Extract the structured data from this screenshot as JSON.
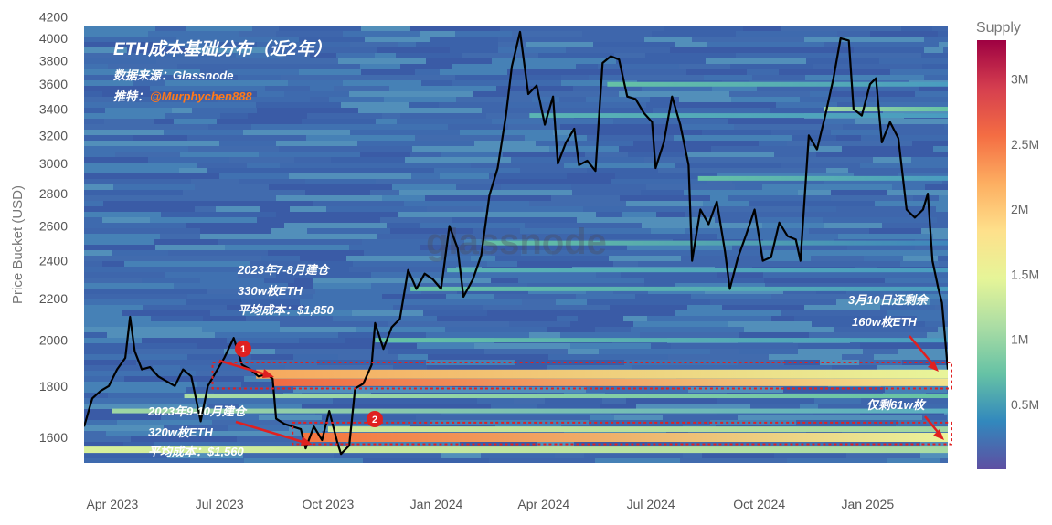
{
  "chart_data": {
    "type": "heatmap",
    "title": "ETH成本基础分布（近2年）",
    "source_line": "数据来源：Glassnode",
    "twitter_prefix": "推特：",
    "twitter_handle": "@Murphychen888",
    "watermark": "glassnode",
    "ylabel": "Price Bucket (USD)",
    "ylim": [
      1520,
      4200
    ],
    "y_ticks": [
      1600,
      1800,
      2000,
      2200,
      2400,
      2600,
      2800,
      3000,
      3200,
      3400,
      3600,
      3800,
      4000,
      4200
    ],
    "x_range": [
      "2023-03-08",
      "2025-03-10"
    ],
    "x_ticks": [
      {
        "date": "2023-04-01",
        "label": "Apr 2023"
      },
      {
        "date": "2023-07-01",
        "label": "Jul 2023"
      },
      {
        "date": "2023-10-01",
        "label": "Oct 2023"
      },
      {
        "date": "2024-01-01",
        "label": "Jan 2024"
      },
      {
        "date": "2024-04-01",
        "label": "Apr 2024"
      },
      {
        "date": "2024-07-01",
        "label": "Jul 2024"
      },
      {
        "date": "2024-10-01",
        "label": "Oct 2024"
      },
      {
        "date": "2025-01-01",
        "label": "Jan 2025"
      }
    ],
    "colorbar": {
      "title": "Supply",
      "min": 0,
      "max": 3300000,
      "ticks": [
        {
          "value": 500000,
          "label": "0.5M"
        },
        {
          "value": 1000000,
          "label": "1M"
        },
        {
          "value": 1500000,
          "label": "1.5M"
        },
        {
          "value": 2000000,
          "label": "2M"
        },
        {
          "value": 2500000,
          "label": "2.5M"
        },
        {
          "value": 3000000,
          "label": "3M"
        }
      ],
      "colors": [
        "#5e4fa2",
        "#3288bd",
        "#66c2a5",
        "#abdda4",
        "#e6f598",
        "#fee08b",
        "#fdae61",
        "#f46d43",
        "#d53e4f",
        "#9e0142"
      ]
    },
    "price_series": {
      "name": "ETH price",
      "points": [
        [
          "2023-03-08",
          1640
        ],
        [
          "2023-03-15",
          1750
        ],
        [
          "2023-03-22",
          1780
        ],
        [
          "2023-03-29",
          1800
        ],
        [
          "2023-04-05",
          1870
        ],
        [
          "2023-04-12",
          1920
        ],
        [
          "2023-04-16",
          2110
        ],
        [
          "2023-04-20",
          1950
        ],
        [
          "2023-04-26",
          1870
        ],
        [
          "2023-05-03",
          1880
        ],
        [
          "2023-05-10",
          1840
        ],
        [
          "2023-05-17",
          1820
        ],
        [
          "2023-05-24",
          1800
        ],
        [
          "2023-05-31",
          1870
        ],
        [
          "2023-06-07",
          1840
        ],
        [
          "2023-06-15",
          1660
        ],
        [
          "2023-06-21",
          1800
        ],
        [
          "2023-06-28",
          1860
        ],
        [
          "2023-07-05",
          1920
        ],
        [
          "2023-07-13",
          2010
        ],
        [
          "2023-07-20",
          1890
        ],
        [
          "2023-07-27",
          1870
        ],
        [
          "2023-08-03",
          1840
        ],
        [
          "2023-08-10",
          1850
        ],
        [
          "2023-08-15",
          1830
        ],
        [
          "2023-08-18",
          1670
        ],
        [
          "2023-08-25",
          1650
        ],
        [
          "2023-09-01",
          1640
        ],
        [
          "2023-09-08",
          1630
        ],
        [
          "2023-09-12",
          1560
        ],
        [
          "2023-09-19",
          1640
        ],
        [
          "2023-09-26",
          1590
        ],
        [
          "2023-10-02",
          1700
        ],
        [
          "2023-10-09",
          1580
        ],
        [
          "2023-10-12",
          1540
        ],
        [
          "2023-10-19",
          1570
        ],
        [
          "2023-10-24",
          1790
        ],
        [
          "2023-10-31",
          1810
        ],
        [
          "2023-11-07",
          1890
        ],
        [
          "2023-11-10",
          2080
        ],
        [
          "2023-11-17",
          1960
        ],
        [
          "2023-11-24",
          2060
        ],
        [
          "2023-12-01",
          2100
        ],
        [
          "2023-12-08",
          2350
        ],
        [
          "2023-12-15",
          2250
        ],
        [
          "2023-12-22",
          2330
        ],
        [
          "2023-12-29",
          2300
        ],
        [
          "2024-01-05",
          2250
        ],
        [
          "2024-01-12",
          2600
        ],
        [
          "2024-01-19",
          2470
        ],
        [
          "2024-01-24",
          2210
        ],
        [
          "2024-02-01",
          2300
        ],
        [
          "2024-02-08",
          2430
        ],
        [
          "2024-02-15",
          2790
        ],
        [
          "2024-02-22",
          2970
        ],
        [
          "2024-02-29",
          3350
        ],
        [
          "2024-03-05",
          3750
        ],
        [
          "2024-03-12",
          4060
        ],
        [
          "2024-03-19",
          3520
        ],
        [
          "2024-03-26",
          3590
        ],
        [
          "2024-04-02",
          3280
        ],
        [
          "2024-04-09",
          3500
        ],
        [
          "2024-04-13",
          3000
        ],
        [
          "2024-04-20",
          3150
        ],
        [
          "2024-04-27",
          3250
        ],
        [
          "2024-05-01",
          2990
        ],
        [
          "2024-05-08",
          3020
        ],
        [
          "2024-05-15",
          2950
        ],
        [
          "2024-05-21",
          3780
        ],
        [
          "2024-05-28",
          3840
        ],
        [
          "2024-06-04",
          3810
        ],
        [
          "2024-06-11",
          3500
        ],
        [
          "2024-06-18",
          3480
        ],
        [
          "2024-06-25",
          3370
        ],
        [
          "2024-07-02",
          3300
        ],
        [
          "2024-07-05",
          2970
        ],
        [
          "2024-07-12",
          3150
        ],
        [
          "2024-07-19",
          3500
        ],
        [
          "2024-07-26",
          3280
        ],
        [
          "2024-08-02",
          2990
        ],
        [
          "2024-08-05",
          2400
        ],
        [
          "2024-08-12",
          2700
        ],
        [
          "2024-08-19",
          2610
        ],
        [
          "2024-08-26",
          2750
        ],
        [
          "2024-09-02",
          2450
        ],
        [
          "2024-09-06",
          2250
        ],
        [
          "2024-09-13",
          2420
        ],
        [
          "2024-09-20",
          2550
        ],
        [
          "2024-09-27",
          2700
        ],
        [
          "2024-10-04",
          2400
        ],
        [
          "2024-10-11",
          2420
        ],
        [
          "2024-10-18",
          2620
        ],
        [
          "2024-10-25",
          2540
        ],
        [
          "2024-11-01",
          2520
        ],
        [
          "2024-11-05",
          2400
        ],
        [
          "2024-11-12",
          3200
        ],
        [
          "2024-11-19",
          3100
        ],
        [
          "2024-11-26",
          3350
        ],
        [
          "2024-12-03",
          3650
        ],
        [
          "2024-12-09",
          4000
        ],
        [
          "2024-12-16",
          3980
        ],
        [
          "2024-12-20",
          3400
        ],
        [
          "2024-12-27",
          3350
        ],
        [
          "2025-01-03",
          3600
        ],
        [
          "2025-01-08",
          3650
        ],
        [
          "2025-01-13",
          3150
        ],
        [
          "2025-01-20",
          3300
        ],
        [
          "2025-01-27",
          3180
        ],
        [
          "2025-02-03",
          2700
        ],
        [
          "2025-02-10",
          2650
        ],
        [
          "2025-02-17",
          2700
        ],
        [
          "2025-02-21",
          2800
        ],
        [
          "2025-02-25",
          2400
        ],
        [
          "2025-03-02",
          2250
        ],
        [
          "2025-03-05",
          2180
        ],
        [
          "2025-03-10",
          1870
        ]
      ]
    },
    "bands": [
      {
        "id": 1,
        "label": "2023年7-8月建仓",
        "amount": "330w枚ETH",
        "avg_cost": "平均成本：$1,850",
        "price_low": 1790,
        "price_high": 1900,
        "remaining": "160w枚ETH",
        "remaining_date": "3月10日还剩余"
      },
      {
        "id": 2,
        "label": "2023年9-10月建仓",
        "amount": "320w枚ETH",
        "avg_cost": "平均成本：$1,560",
        "price_low": 1575,
        "price_high": 1655,
        "remaining": "仅剩61w枚"
      }
    ],
    "markers": [
      {
        "label": "1"
      },
      {
        "label": "2"
      }
    ]
  }
}
